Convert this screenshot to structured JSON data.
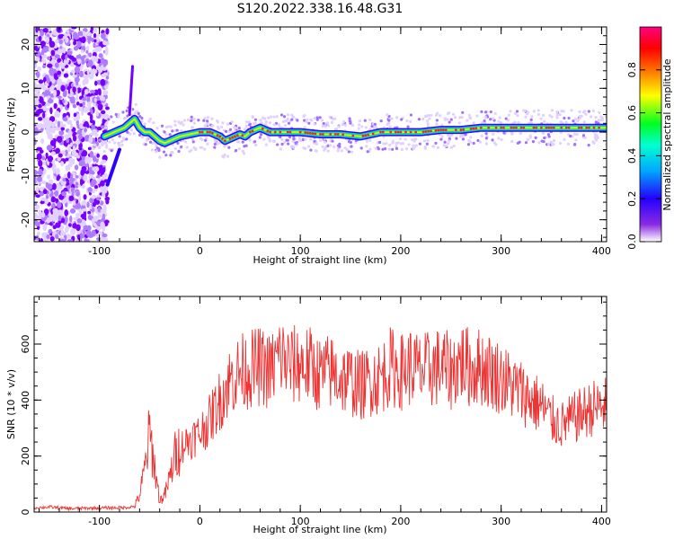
{
  "title": "S120.2022.338.16.48.G31",
  "chart_data": [
    {
      "type": "heatmap",
      "title": "S120.2022.338.16.48.G31",
      "xlabel": "Height of straight line (km)",
      "ylabel": "Frequency (Hz)",
      "xlim": [
        -165,
        405
      ],
      "ylim": [
        -25,
        24
      ],
      "x_ticks": [
        "-100",
        "0",
        "100",
        "200",
        "300",
        "400"
      ],
      "y_ticks": [
        "-20",
        "-10",
        "0",
        "10",
        "20"
      ],
      "colorbar": {
        "label": "Normalized spectral amplitude",
        "range": [
          0.0,
          1.0
        ],
        "ticks": [
          "0.0",
          "0.2",
          "0.4",
          "0.6",
          "0.8"
        ],
        "colors": [
          "#ffffff",
          "#6a00ff",
          "#0000ff",
          "#00d8ff",
          "#00ff40",
          "#ffff00",
          "#ff6000",
          "#ff0000",
          "#ff0080"
        ]
      },
      "ridge": {
        "name": "",
        "x": [
          -95,
          -85,
          -75,
          -70,
          -65,
          -60,
          -55,
          -50,
          -45,
          -40,
          -35,
          -30,
          -20,
          -10,
          0,
          10,
          20,
          25,
          30,
          35,
          40,
          45,
          50,
          55,
          60,
          70,
          80,
          100,
          120,
          140,
          160,
          180,
          200,
          220,
          240,
          260,
          280,
          300,
          320,
          340,
          360,
          380,
          405
        ],
        "y": [
          -1,
          0,
          1,
          2,
          3,
          1,
          0,
          0,
          -1,
          -2,
          -2.5,
          -2,
          -1,
          -0.5,
          0,
          0,
          -1,
          -2,
          -1.5,
          -1,
          -0.5,
          -1,
          0,
          0.5,
          1,
          0,
          0,
          0,
          -0.5,
          -0.5,
          -1,
          0,
          0,
          0,
          0.5,
          0.5,
          1,
          1,
          1,
          1,
          1,
          1,
          1
        ]
      }
    },
    {
      "type": "line",
      "xlabel": "Height of straight line (km)",
      "ylabel": "SNR (10 * v/v)",
      "xlim": [
        -165,
        405
      ],
      "ylim": [
        0,
        770
      ],
      "x_ticks": [
        "-100",
        "0",
        "100",
        "200",
        "300",
        "400"
      ],
      "y_ticks": [
        "0",
        "200",
        "400",
        "600"
      ],
      "color": "#ee3333",
      "series": [
        {
          "values_x": [
            -165,
            -150,
            -130,
            -110,
            -90,
            -75,
            -65,
            -60,
            -55,
            -50,
            -45,
            -40,
            -35,
            -30,
            -25,
            -20,
            -10,
            0,
            10,
            20,
            30,
            40,
            50,
            60,
            70,
            80,
            90,
            100,
            110,
            120,
            130,
            140,
            150,
            160,
            170,
            180,
            190,
            200,
            210,
            220,
            230,
            240,
            250,
            260,
            270,
            280,
            290,
            300,
            310,
            320,
            330,
            340,
            350,
            360,
            370,
            380,
            390,
            405
          ],
          "values_y": [
            15,
            18,
            12,
            14,
            15,
            16,
            20,
            60,
            150,
            280,
            160,
            40,
            60,
            120,
            200,
            230,
            260,
            280,
            330,
            400,
            470,
            500,
            510,
            520,
            500,
            560,
            520,
            530,
            520,
            490,
            500,
            480,
            470,
            450,
            470,
            480,
            520,
            500,
            520,
            500,
            510,
            520,
            500,
            540,
            510,
            520,
            500,
            480,
            450,
            430,
            400,
            380,
            330,
            310,
            330,
            350,
            370,
            380
          ]
        }
      ]
    }
  ]
}
